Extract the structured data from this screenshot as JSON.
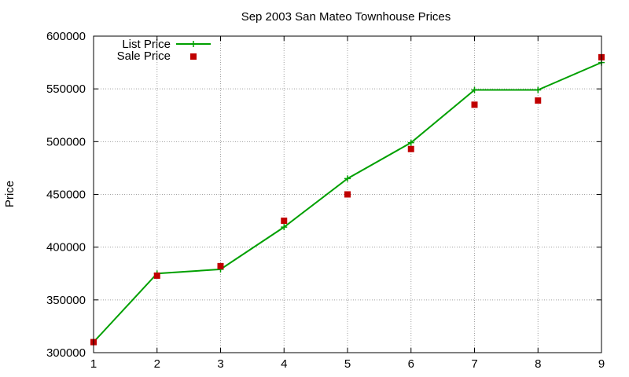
{
  "chart_data": {
    "type": "line",
    "title": "Sep 2003 San Mateo Townhouse Prices",
    "xlabel": "",
    "ylabel": "Price",
    "xlim": [
      1,
      9
    ],
    "ylim": [
      300000,
      600000
    ],
    "x_ticks": [
      "1",
      "2",
      "3",
      "4",
      "5",
      "6",
      "7",
      "8",
      "9"
    ],
    "y_ticks": [
      "300000",
      "350000",
      "400000",
      "450000",
      "500000",
      "550000",
      "600000"
    ],
    "grid": true,
    "legend_position": "top-left",
    "x": [
      1,
      2,
      3,
      4,
      5,
      6,
      7,
      8,
      9
    ],
    "series": [
      {
        "name": "List Price",
        "style": "linespoints",
        "marker": "plus",
        "color": "#00a000",
        "values": [
          310000,
          375000,
          379000,
          419000,
          465000,
          499000,
          549000,
          549000,
          575000
        ]
      },
      {
        "name": "Sale Price",
        "style": "points",
        "marker": "square",
        "color": "#c00000",
        "values": [
          310000,
          373000,
          382000,
          425000,
          450000,
          493000,
          535000,
          539000,
          580000
        ]
      }
    ]
  }
}
